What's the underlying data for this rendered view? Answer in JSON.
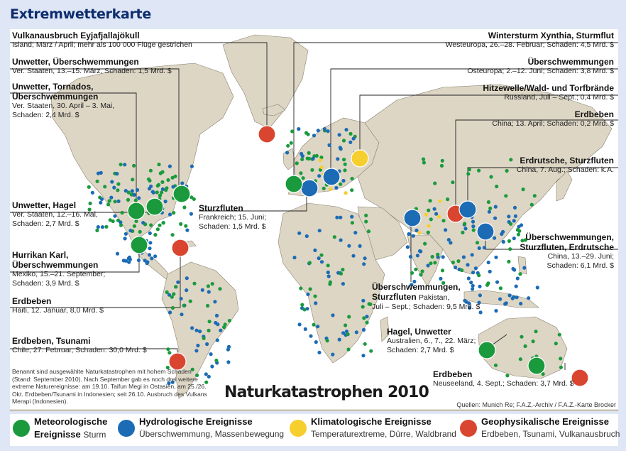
{
  "header": {
    "title": "Extremwetterkarte"
  },
  "map": {
    "title": "Naturkatastrophen 2010",
    "note": "Benannt sind ausgewählte Naturkatastrophen mit hohem Schaden (Stand: September 2010). Nach September gab es noch drei weitere extreme Naturereignisse: am 19.10. Taifun Megi in Ostasien, am 25./26. Okt. Erdbeben/Tsunami in Indonesien; seit 26.10. Ausbruch des Vulkans Merapi (Indonesien).",
    "sources": "Quellen: Munich Re; F.A.Z.-Archiv / F.A.Z.-Karte Brocker",
    "colors": {
      "meteorological": "#1a9a3c",
      "hydrological": "#1c6bb5",
      "climatological": "#f6cf2e",
      "geophysical": "#d9452f",
      "land": "#ddd6c5",
      "water": "#ffffff",
      "border": "#555555"
    }
  },
  "events": [
    {
      "title": "Vulkanausbruch Eyjafjallajökull",
      "detail": "Island; März / April; mehr als 100 000 Flüge gestrichen",
      "category": "geophysical"
    },
    {
      "title": "Unwetter, Überschwemmungen",
      "detail": "Ver. Staaten, 13.–15. März, Schaden: 1,5 Mrd. $",
      "category": "meteorological"
    },
    {
      "title": "Unwetter, Tornados,",
      "title2": "Überschwemmungen",
      "detail": "Ver. Staaten, 30. April – 3. Mai,",
      "detail2": "Schaden: 2,4 Mrd. $",
      "category": "meteorological"
    },
    {
      "title": "Unwetter, Hagel",
      "detail": "Ver. Staaten, 12.–16. Mai,",
      "detail2": "Schaden: 2,7 Mrd. $",
      "category": "meteorological"
    },
    {
      "title": "Hurrikan Karl,",
      "title2": "Überschwemmungen",
      "detail": "Mexiko, 15.–21. September;",
      "detail2": "Schaden: 3,9 Mrd. $",
      "category": "meteorological"
    },
    {
      "title": "Erdbeben",
      "detail": "Haiti, 12. Januar, 8,0 Mrd. $",
      "category": "geophysical"
    },
    {
      "title": "Erdbeben, Tsunami",
      "detail": "Chile, 27. Februar, Schaden: 30,0 Mrd. $",
      "category": "geophysical"
    },
    {
      "title": "Sturzfluten",
      "detail": "Frankreich; 15. Juni;",
      "detail2": "Schaden: 1,5 Mrd. $",
      "category": "hydrological"
    },
    {
      "title": "Wintersturm Xynthia, Sturmflut",
      "detail": "Westeuropa, 26.–28. Februar; Schaden: 4,5 Mrd. $",
      "category": "meteorological"
    },
    {
      "title": "Überschwemmungen",
      "detail": "Osteuropa; 2.–12. Juni; Schaden: 3,8 Mrd. $",
      "category": "hydrological"
    },
    {
      "title": "Hitzewelle/Wald- und Torfbrände",
      "detail": "Russland, Juli – Sept.; 0,4 Mrd. $",
      "category": "climatological"
    },
    {
      "title": "Erdbeben",
      "detail": "China; 13. April; Schaden: 0,2 Mrd. $",
      "category": "geophysical"
    },
    {
      "title": "Erdrutsche, Sturzfluten",
      "detail": "China, 7. Aug.; Schaden: k.A.",
      "category": "hydrological"
    },
    {
      "title": "Überschwemmungen,",
      "title2": "Sturzfluten, Erdrutsche",
      "detail": "China, 13.–29. Juni;",
      "detail2": "Schaden: 6,1 Mrd. $",
      "category": "hydrological"
    },
    {
      "title": "Überschwemmungen,",
      "title2": "Sturzfluten",
      "title2_suffix": "Pakistan,",
      "detail": "Juli – Sept.; Schaden: 9,5 Mrd. $",
      "category": "hydrological"
    },
    {
      "title": "Hagel, Unwetter",
      "detail": "Australien, 6., 7., 22. März;",
      "detail2": "Schaden: 2,7 Mrd. $",
      "category": "meteorological"
    },
    {
      "title": "Erdbeben",
      "detail": "Neuseeland, 4. Sept.; Schaden: 3,7 Mrd. $",
      "category": "geophysical"
    }
  ],
  "legend": [
    {
      "title": "Meteorologische",
      "title2": "Ereignisse",
      "desc": "Sturm",
      "category": "meteorological"
    },
    {
      "title": "Hydrologische Ereignisse",
      "desc": "Überschwemmung, Massenbewegung",
      "category": "hydrological"
    },
    {
      "title": "Klimatologische Ereignisse",
      "desc": "Temperaturextreme, Dürre, Waldbrand",
      "category": "climatological"
    },
    {
      "title": "Geophysikalische Ereignisse",
      "desc": "Erdbeben, Tsunami, Vulkanausbruch",
      "category": "geophysical"
    }
  ]
}
